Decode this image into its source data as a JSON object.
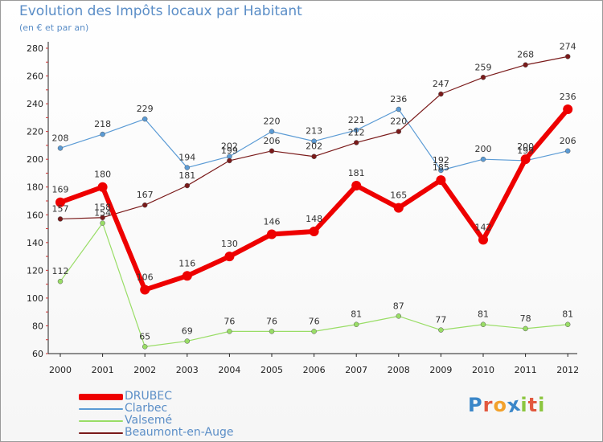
{
  "header": {
    "title": "Evolution des Impôts locaux par Habitant",
    "subtitle": "(en € et par an)"
  },
  "logo": {
    "text": "Proxiti",
    "letters": [
      "P",
      "r",
      "o",
      "x",
      "i",
      "t",
      "i"
    ]
  },
  "chart_data": {
    "type": "line",
    "title": "Evolution des Impôts locaux par Habitant",
    "ylabel": "(en € et par an)",
    "xlabel": "",
    "ylim": [
      60,
      280
    ],
    "yticks": [
      60,
      80,
      100,
      120,
      140,
      160,
      180,
      200,
      220,
      240,
      260,
      280
    ],
    "categories": [
      "2000",
      "2001",
      "2002",
      "2003",
      "2004",
      "2005",
      "2006",
      "2007",
      "2008",
      "2009",
      "2010",
      "2011",
      "2012"
    ],
    "grid": false,
    "legend_position": "bottom-left",
    "series": [
      {
        "name": "DRUBEC",
        "color": "#ee0000",
        "values": [
          169,
          180,
          106,
          116,
          130,
          146,
          148,
          181,
          165,
          185,
          142,
          200,
          236
        ]
      },
      {
        "name": "Clarbec",
        "color": "#5b9bd5",
        "values": [
          208,
          218,
          229,
          194,
          202,
          220,
          213,
          221,
          236,
          192,
          200,
          199,
          206
        ]
      },
      {
        "name": "Valsemé",
        "color": "#99dd66",
        "values": [
          112,
          154,
          65,
          69,
          76,
          76,
          76,
          81,
          87,
          77,
          81,
          78,
          81
        ]
      },
      {
        "name": "Beaumont-en-Auge",
        "color": "#7a1a1a",
        "values": [
          157,
          158,
          167,
          181,
          199,
          206,
          202,
          212,
          220,
          247,
          259,
          268,
          274
        ]
      }
    ]
  }
}
